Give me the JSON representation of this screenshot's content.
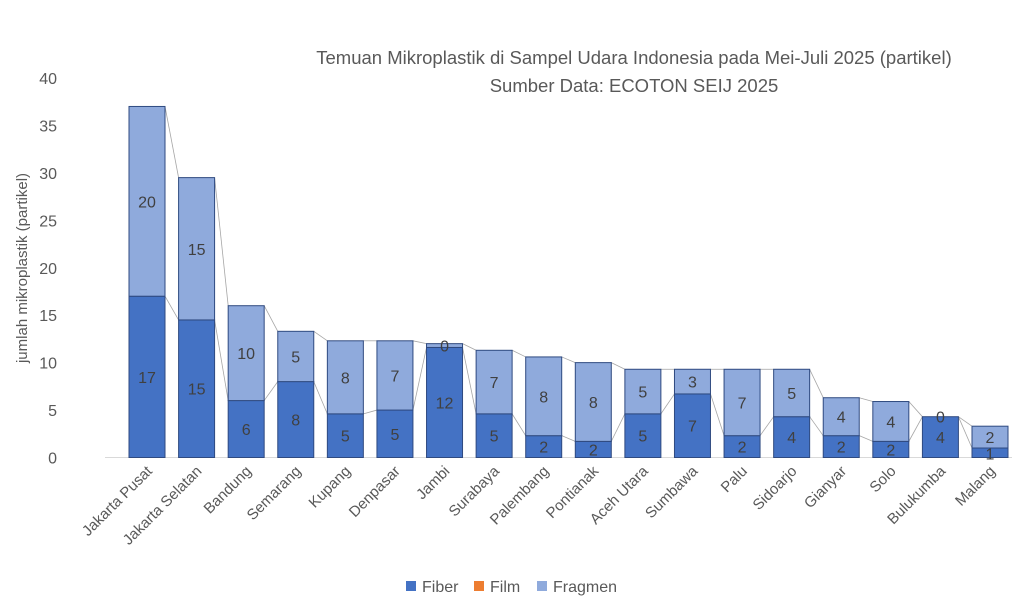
{
  "chart_data": {
    "type": "bar",
    "stacked": true,
    "title": "Temuan Mikroplastik di Sampel Udara Indonesia pada Mei-Juli 2025 (partikel)",
    "subtitle": "Sumber Data: ECOTON SEIJ 2025",
    "xlabel": "",
    "ylabel": "jumlah mikroplastik (partikel)",
    "ylim": [
      0,
      40
    ],
    "yticks": [
      "0",
      "5",
      "10",
      "15",
      "20",
      "25",
      "30",
      "35",
      "40"
    ],
    "grid": false,
    "legend_position": "bottom",
    "series_lines": true,
    "categories": [
      "Jakarta Pusat",
      "Jakarta Selatan",
      "Bandung",
      "Semarang",
      "Kupang",
      "Denpasar",
      "Jambi",
      "Surabaya",
      "Palembang",
      "Pontianak",
      "Aceh Utara",
      "Sumbawa",
      "Palu",
      "Sidoarjo",
      "Gianyar",
      "Solo",
      "Bulukumba",
      "Malang"
    ],
    "series": [
      {
        "name": "Fiber",
        "color": "#4472C4",
        "values": [
          17,
          14.5,
          6,
          8,
          4.6,
          5,
          11.6,
          4.6,
          2.3,
          1.7,
          4.6,
          6.7,
          2.3,
          4.3,
          2.3,
          1.7,
          4.3,
          1
        ],
        "labels": [
          "17",
          "15",
          "6",
          "8",
          "5",
          "5",
          "12",
          "5",
          "2",
          "2",
          "5",
          "7",
          "2",
          "4",
          "2",
          "2",
          "4",
          "1"
        ]
      },
      {
        "name": "Film",
        "color": "#ED7D31",
        "values": [
          0,
          0,
          0,
          0,
          0,
          0,
          0,
          0,
          0,
          0,
          0,
          0,
          0,
          0,
          0,
          0,
          0,
          0
        ],
        "labels": []
      },
      {
        "name": "Fragmen",
        "color": "#8FAADC",
        "values": [
          20,
          15,
          10,
          5.3,
          7.7,
          7.3,
          0.4,
          6.7,
          8.3,
          8.3,
          4.7,
          2.6,
          7,
          5,
          4,
          4.2,
          0,
          2.3
        ],
        "labels": [
          "20",
          "15",
          "10",
          "5",
          "8",
          "7",
          "0",
          "7",
          "8",
          "8",
          "5",
          "3",
          "7",
          "5",
          "4",
          "4",
          "0",
          "2"
        ]
      }
    ]
  }
}
